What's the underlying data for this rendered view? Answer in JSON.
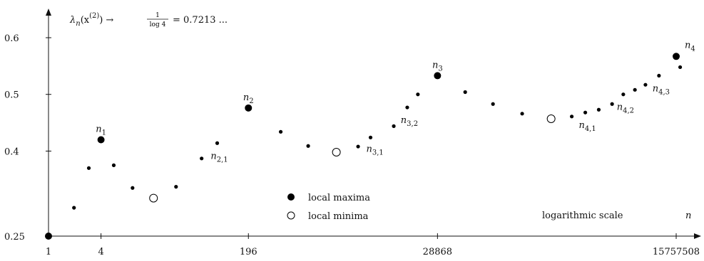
{
  "chart_data": {
    "type": "scatter",
    "title": "",
    "formula": {
      "lhs_lambda": "λ",
      "lhs_sub": "n",
      "lhs_arg": "(x",
      "lhs_sup": "(2)",
      "lhs_close": ")",
      "arrow": "→",
      "frac_num": "1",
      "frac_den": "log 4",
      "rhs": "= 0.7213 ..."
    },
    "x_scale": "logarithmic",
    "x_axis_label": "n",
    "x_ticks": [
      1,
      4,
      196,
      28868,
      15757508
    ],
    "x_tick_labels": [
      "1",
      "4",
      "196",
      "28868",
      "15757508"
    ],
    "y_ticks": [
      0.25,
      0.4,
      0.5,
      0.6
    ],
    "y_tick_labels": [
      "0.25",
      "0.4",
      "0.5",
      "0.6"
    ],
    "ylim": [
      0.25,
      0.64
    ],
    "scale_note": "logarithmic scale",
    "legend": [
      {
        "kind": "max",
        "label": "local maxima"
      },
      {
        "kind": "min",
        "label": "local minima"
      }
    ],
    "points": [
      {
        "x": 1,
        "y": 0.25,
        "kind": "max"
      },
      {
        "x": 1.96,
        "y": 0.3,
        "kind": "small"
      },
      {
        "x": 2.9,
        "y": 0.37,
        "kind": "small"
      },
      {
        "x": 4,
        "y": 0.42,
        "kind": "max"
      },
      {
        "x": 5.6,
        "y": 0.375,
        "kind": "small"
      },
      {
        "x": 9.2,
        "y": 0.335,
        "kind": "small"
      },
      {
        "x": 16,
        "y": 0.317,
        "kind": "min"
      },
      {
        "x": 29,
        "y": 0.337,
        "kind": "small"
      },
      {
        "x": 57,
        "y": 0.387,
        "kind": "small"
      },
      {
        "x": 86,
        "y": 0.414,
        "kind": "small"
      },
      {
        "x": 196,
        "y": 0.476,
        "kind": "max"
      },
      {
        "x": 460,
        "y": 0.434,
        "kind": "small"
      },
      {
        "x": 950,
        "y": 0.409,
        "kind": "small"
      },
      {
        "x": 2000,
        "y": 0.398,
        "kind": "min"
      },
      {
        "x": 3550,
        "y": 0.408,
        "kind": "small"
      },
      {
        "x": 4930,
        "y": 0.424,
        "kind": "small"
      },
      {
        "x": 9100,
        "y": 0.444,
        "kind": "small"
      },
      {
        "x": 12990,
        "y": 0.477,
        "kind": "small"
      },
      {
        "x": 17200,
        "y": 0.5,
        "kind": "small"
      },
      {
        "x": 28868,
        "y": 0.533,
        "kind": "max"
      },
      {
        "x": 60000,
        "y": 0.504,
        "kind": "small"
      },
      {
        "x": 125000,
        "y": 0.483,
        "kind": "small"
      },
      {
        "x": 270000,
        "y": 0.466,
        "kind": "small"
      },
      {
        "x": 580000,
        "y": 0.457,
        "kind": "min"
      },
      {
        "x": 1000000,
        "y": 0.461,
        "kind": "small"
      },
      {
        "x": 1430000,
        "y": 0.468,
        "kind": "small"
      },
      {
        "x": 2040000,
        "y": 0.473,
        "kind": "small"
      },
      {
        "x": 2900000,
        "y": 0.483,
        "kind": "small"
      },
      {
        "x": 3900000,
        "y": 0.5,
        "kind": "small"
      },
      {
        "x": 5300000,
        "y": 0.508,
        "kind": "small"
      },
      {
        "x": 7000000,
        "y": 0.517,
        "kind": "small"
      },
      {
        "x": 10000000,
        "y": 0.533,
        "kind": "small"
      },
      {
        "x": 15757508,
        "y": 0.567,
        "kind": "max"
      },
      {
        "x": 17500000,
        "y": 0.548,
        "kind": "small"
      }
    ],
    "point_labels": [
      {
        "base": "n",
        "sub": "1",
        "anchor_x": 4,
        "anchor_y": 0.42,
        "pos": "above"
      },
      {
        "base": "n",
        "sub": "2",
        "anchor_x": 196,
        "anchor_y": 0.476,
        "pos": "above"
      },
      {
        "base": "n",
        "sub": "3",
        "anchor_x": 28868,
        "anchor_y": 0.533,
        "pos": "above"
      },
      {
        "base": "n",
        "sub": "4",
        "anchor_x": 15757508,
        "anchor_y": 0.567,
        "pos": "above-right"
      },
      {
        "base": "n",
        "sub": "2,1",
        "anchor_x": 86,
        "anchor_y": 0.414,
        "pos": "below"
      },
      {
        "base": "n",
        "sub": "3,1",
        "anchor_x": 4930,
        "anchor_y": 0.424,
        "pos": "below-right"
      },
      {
        "base": "n",
        "sub": "3,2",
        "anchor_x": 12990,
        "anchor_y": 0.477,
        "pos": "below"
      },
      {
        "base": "n",
        "sub": "4,1",
        "anchor_x": 1430000,
        "anchor_y": 0.468,
        "pos": "below"
      },
      {
        "base": "n",
        "sub": "4,2",
        "anchor_x": 3900000,
        "anchor_y": 0.5,
        "pos": "below"
      },
      {
        "base": "n",
        "sub": "4,3",
        "anchor_x": 10000000,
        "anchor_y": 0.533,
        "pos": "below"
      }
    ]
  }
}
